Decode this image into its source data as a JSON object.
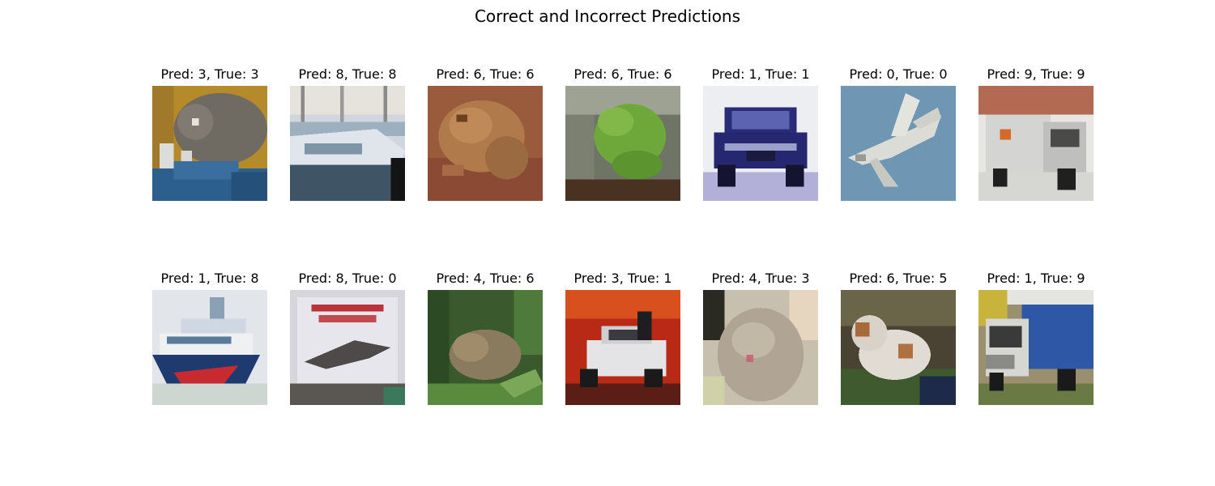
{
  "title": "Correct and Incorrect Predictions",
  "panels": [
    {
      "label": "Pred: 3, True: 3",
      "content": "cat"
    },
    {
      "label": "Pred: 8, True: 8",
      "content": "ship"
    },
    {
      "label": "Pred: 6, True: 6",
      "content": "frog"
    },
    {
      "label": "Pred: 6, True: 6",
      "content": "frog"
    },
    {
      "label": "Pred: 1, True: 1",
      "content": "automobile"
    },
    {
      "label": "Pred: 0, True: 0",
      "content": "airplane"
    },
    {
      "label": "Pred: 9, True: 9",
      "content": "truck"
    },
    {
      "label": "Pred: 1, True: 8",
      "content": "ship"
    },
    {
      "label": "Pred: 8, True: 0",
      "content": "airplane"
    },
    {
      "label": "Pred: 4, True: 6",
      "content": "frog"
    },
    {
      "label": "Pred: 3, True: 1",
      "content": "automobile"
    },
    {
      "label": "Pred: 4, True: 3",
      "content": "cat"
    },
    {
      "label": "Pred: 6, True: 5",
      "content": "dog"
    },
    {
      "label": "Pred: 1, True: 9",
      "content": "truck"
    }
  ]
}
